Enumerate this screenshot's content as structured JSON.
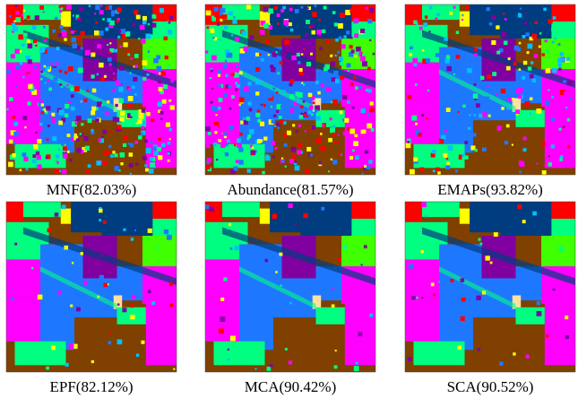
{
  "panels": [
    {
      "caption": "MNF(82.03%)"
    },
    {
      "caption": "Abundance(81.57%)"
    },
    {
      "caption": "EMAPs(93.82%)"
    },
    {
      "caption": "EPF(82.12%)"
    },
    {
      "caption": "MCA(90.42%)"
    },
    {
      "caption": "SCA(90.52%)"
    }
  ]
}
